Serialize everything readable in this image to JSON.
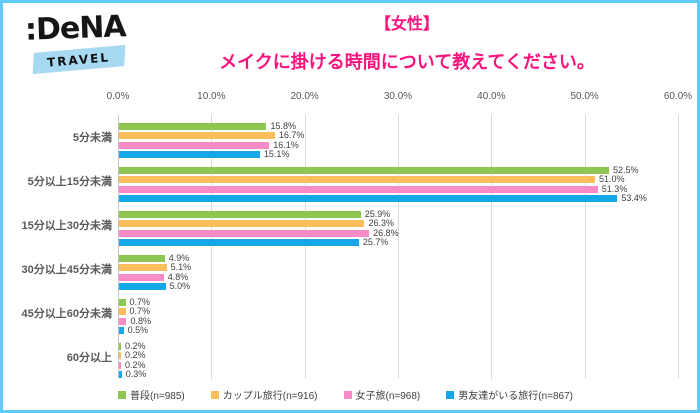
{
  "window": {
    "border_color": "#5FCBF6",
    "background": "#FFFFFF"
  },
  "logo": {
    "brand": ":DeNA",
    "sub": "TRAVEL",
    "banner_color": "#A7DAF2"
  },
  "header": {
    "line1": "【女性】",
    "line2": "メイクに掛ける時間について教えてください。",
    "color": "#FA137C"
  },
  "chart_data": {
    "type": "bar",
    "orientation": "horizontal",
    "title": "【女性】メイクに掛ける時間について教えてください。",
    "categories": [
      "5分未満",
      "5分以上15分未満",
      "15分以上30分未満",
      "30分以上45分未満",
      "45分以上60分未満",
      "60分以上"
    ],
    "series": [
      {
        "name": "普段(n=985)",
        "color": "#8DC751",
        "values": [
          15.8,
          52.5,
          25.9,
          4.9,
          0.7,
          0.2
        ]
      },
      {
        "name": "カップル旅行(n=916)",
        "color": "#FBBE5C",
        "values": [
          16.7,
          51.0,
          26.3,
          5.1,
          0.7,
          0.2
        ]
      },
      {
        "name": "女子旅(n=968)",
        "color": "#F78BC5",
        "values": [
          16.1,
          51.3,
          26.8,
          4.8,
          0.8,
          0.2
        ]
      },
      {
        "name": "男友達がいる旅行(n=867)",
        "color": "#14A8E8",
        "values": [
          15.1,
          53.4,
          25.7,
          5.0,
          0.5,
          0.3
        ]
      }
    ],
    "x_ticks": [
      "0.0%",
      "10.0%",
      "20.0%",
      "30.0%",
      "40.0%",
      "50.0%",
      "60.0%"
    ],
    "xlim": [
      0,
      60
    ],
    "value_suffix": "%",
    "grid": true,
    "legend_position": "bottom",
    "colors": {
      "gridline": "#D9D9D9",
      "axis_line": "#C3C3C3",
      "tick_text": "#595959",
      "value_text": "#3F3F3F"
    }
  }
}
